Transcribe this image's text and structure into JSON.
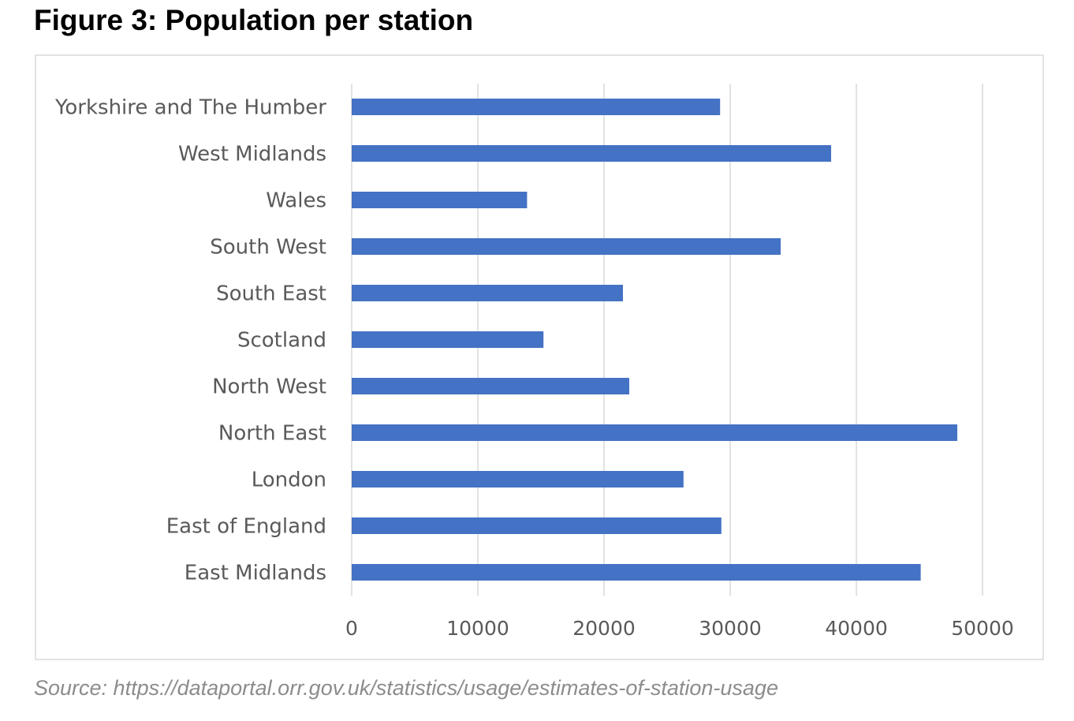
{
  "figure": {
    "title": "Figure 3: Population per station",
    "source": "Source: https://dataportal.orr.gov.uk/statistics/usage/estimates-of-station-usage"
  },
  "colors": {
    "bar": "#4472c4",
    "grid": "#d9d9d9",
    "text": "#595959"
  },
  "chart_data": {
    "type": "bar",
    "orientation": "horizontal",
    "title": "Figure 3: Population per station",
    "xlabel": "",
    "ylabel": "",
    "xlim": [
      0,
      50000
    ],
    "grid": true,
    "legend": "none",
    "categories": [
      "Yorkshire and The Humber",
      "West Midlands",
      "Wales",
      "South West",
      "South East",
      "Scotland",
      "North West",
      "North East",
      "London",
      "East of England",
      "East Midlands"
    ],
    "values": [
      29200,
      38000,
      13900,
      34000,
      21500,
      15200,
      22000,
      48000,
      26300,
      29300,
      45100
    ],
    "ticks": [
      0,
      10000,
      20000,
      30000,
      40000,
      50000
    ],
    "tick_labels": [
      "0",
      "10000",
      "20000",
      "30000",
      "40000",
      "50000"
    ]
  }
}
